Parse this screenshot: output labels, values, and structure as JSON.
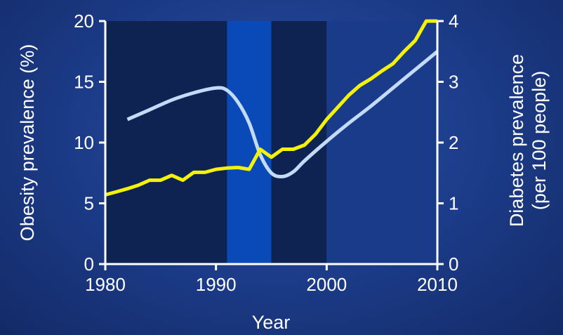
{
  "chart_data": {
    "type": "line",
    "xlabel": "Year",
    "ylabel_left": "Obesity prevalence (%)",
    "ylabel_right_line1": "Diabetes prevalence",
    "ylabel_right_line2": "(per 100 people)",
    "xlim": [
      1980,
      2010
    ],
    "ylim_left": [
      0,
      20
    ],
    "ylim_right": [
      0,
      4
    ],
    "x_ticks": [
      1980,
      1990,
      2000,
      2010
    ],
    "y_ticks_left": [
      0,
      5,
      10,
      15,
      20
    ],
    "y_ticks_right": [
      0,
      1,
      2,
      3,
      4
    ],
    "grid": false,
    "legend": "none",
    "period_bands": [
      {
        "from": 1980,
        "to": 1991,
        "color": "#0f2352"
      },
      {
        "from": 1991,
        "to": 1995,
        "color": "#0a4ab8"
      },
      {
        "from": 1995,
        "to": 2000,
        "color": "#0f2352"
      },
      {
        "from": 2000,
        "to": 2010,
        "color": "#1a3b8a"
      }
    ],
    "series": [
      {
        "axis": "left",
        "color": "#c3dbf7",
        "points": [
          [
            1982,
            11.9
          ],
          [
            1984,
            12.7
          ],
          [
            1986,
            13.5
          ],
          [
            1988,
            14.1
          ],
          [
            1990,
            14.5
          ],
          [
            1991,
            14.3
          ],
          [
            1992,
            13.3
          ],
          [
            1993,
            11.6
          ],
          [
            1994,
            9.0
          ],
          [
            1995,
            7.5
          ],
          [
            1996,
            7.2
          ],
          [
            1997,
            7.6
          ],
          [
            1998,
            8.5
          ],
          [
            2000,
            10.1
          ],
          [
            2002,
            11.6
          ],
          [
            2004,
            13.0
          ],
          [
            2006,
            14.5
          ],
          [
            2008,
            16.0
          ],
          [
            2010,
            17.5
          ]
        ]
      },
      {
        "axis": "right",
        "color": "#f5f20a",
        "points": [
          [
            1980,
            1.14
          ],
          [
            1981,
            1.19
          ],
          [
            1982,
            1.24
          ],
          [
            1983,
            1.3
          ],
          [
            1984,
            1.38
          ],
          [
            1985,
            1.38
          ],
          [
            1986,
            1.46
          ],
          [
            1987,
            1.38
          ],
          [
            1988,
            1.51
          ],
          [
            1989,
            1.51
          ],
          [
            1990,
            1.56
          ],
          [
            1991,
            1.58
          ],
          [
            1992,
            1.59
          ],
          [
            1993,
            1.56
          ],
          [
            1994,
            1.89
          ],
          [
            1995,
            1.76
          ],
          [
            1996,
            1.89
          ],
          [
            1997,
            1.89
          ],
          [
            1998,
            1.96
          ],
          [
            1999,
            2.14
          ],
          [
            2000,
            2.38
          ],
          [
            2001,
            2.58
          ],
          [
            2002,
            2.78
          ],
          [
            2003,
            2.94
          ],
          [
            2004,
            3.05
          ],
          [
            2005,
            3.18
          ],
          [
            2006,
            3.3
          ],
          [
            2007,
            3.5
          ],
          [
            2008,
            3.68
          ],
          [
            2009,
            4.0
          ],
          [
            2010,
            4.0
          ]
        ]
      }
    ]
  }
}
